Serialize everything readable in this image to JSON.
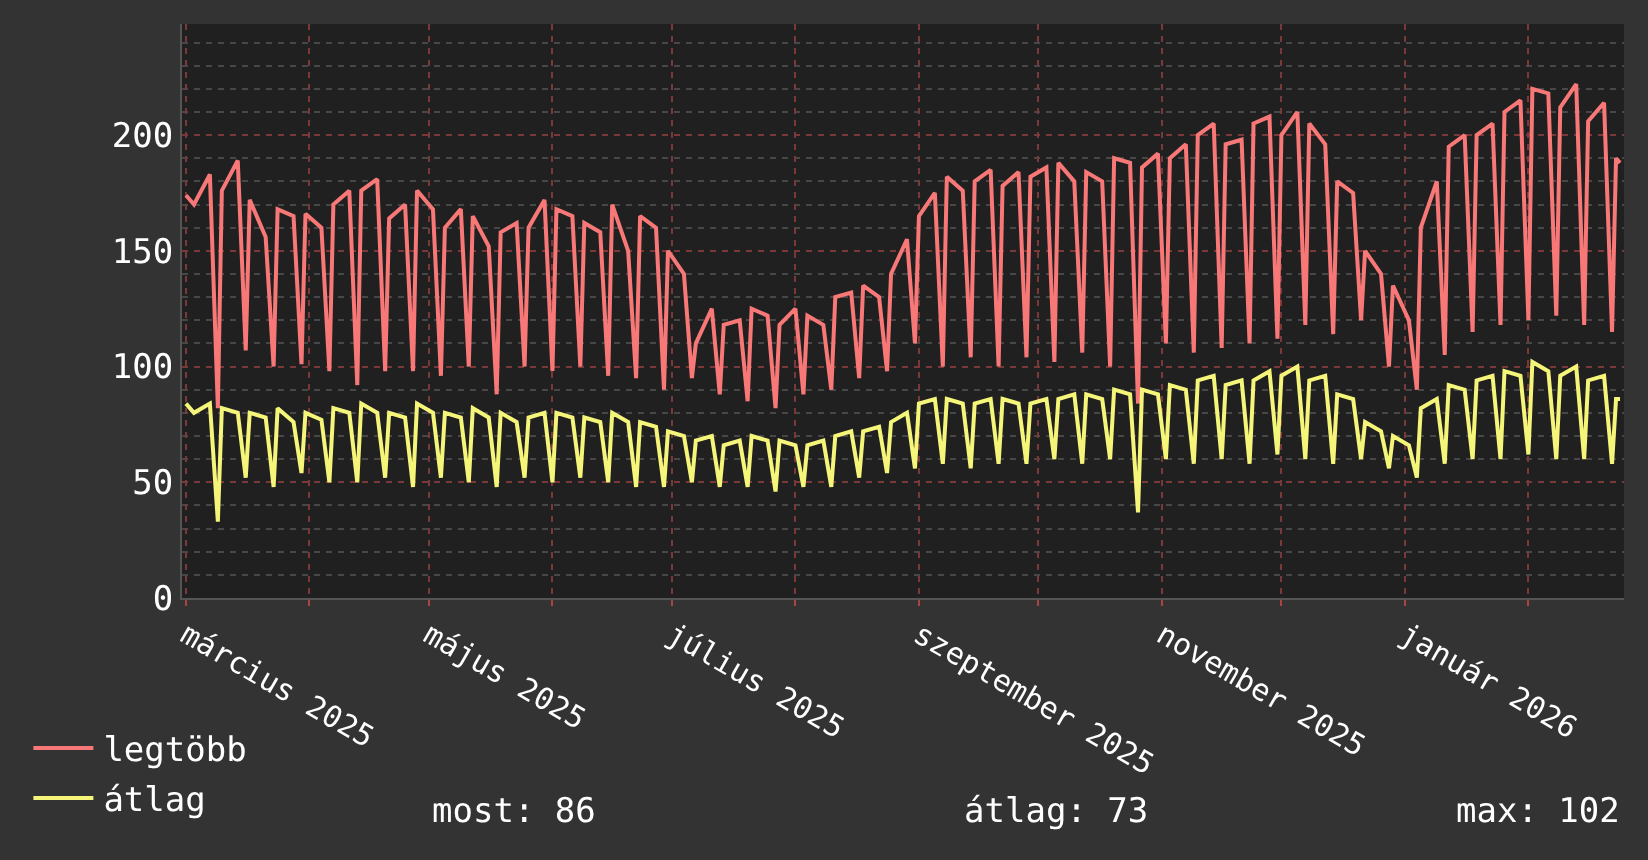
{
  "chart_data": {
    "type": "line",
    "x": [
      "2025-03-01",
      "2025-03-03",
      "2025-03-07",
      "2025-03-09",
      "2025-03-10",
      "2025-03-14",
      "2025-03-16",
      "2025-03-17",
      "2025-03-21",
      "2025-03-23",
      "2025-03-24",
      "2025-03-28",
      "2025-03-30",
      "2025-03-31",
      "2025-04-04",
      "2025-04-06",
      "2025-04-07",
      "2025-04-11",
      "2025-04-13",
      "2025-04-14",
      "2025-04-18",
      "2025-04-20",
      "2025-04-21",
      "2025-04-25",
      "2025-04-27",
      "2025-04-28",
      "2025-05-02",
      "2025-05-04",
      "2025-05-05",
      "2025-05-09",
      "2025-05-11",
      "2025-05-12",
      "2025-05-16",
      "2025-05-18",
      "2025-05-19",
      "2025-05-23",
      "2025-05-25",
      "2025-05-26",
      "2025-05-30",
      "2025-06-01",
      "2025-06-02",
      "2025-06-06",
      "2025-06-08",
      "2025-06-09",
      "2025-06-13",
      "2025-06-15",
      "2025-06-16",
      "2025-06-20",
      "2025-06-22",
      "2025-06-23",
      "2025-06-27",
      "2025-06-29",
      "2025-06-30",
      "2025-07-04",
      "2025-07-06",
      "2025-07-07",
      "2025-07-11",
      "2025-07-13",
      "2025-07-14",
      "2025-07-18",
      "2025-07-20",
      "2025-07-21",
      "2025-07-25",
      "2025-07-27",
      "2025-07-28",
      "2025-08-01",
      "2025-08-03",
      "2025-08-04",
      "2025-08-08",
      "2025-08-10",
      "2025-08-11",
      "2025-08-15",
      "2025-08-17",
      "2025-08-18",
      "2025-08-22",
      "2025-08-24",
      "2025-08-25",
      "2025-08-29",
      "2025-08-31",
      "2025-09-01",
      "2025-09-05",
      "2025-09-07",
      "2025-09-08",
      "2025-09-12",
      "2025-09-14",
      "2025-09-15",
      "2025-09-19",
      "2025-09-21",
      "2025-09-22",
      "2025-09-26",
      "2025-09-28",
      "2025-09-29",
      "2025-10-03",
      "2025-10-05",
      "2025-10-06",
      "2025-10-10",
      "2025-10-12",
      "2025-10-13",
      "2025-10-17",
      "2025-10-19",
      "2025-10-20",
      "2025-10-24",
      "2025-10-26",
      "2025-10-27",
      "2025-10-31",
      "2025-11-02",
      "2025-11-03",
      "2025-11-07",
      "2025-11-09",
      "2025-11-10",
      "2025-11-14",
      "2025-11-16",
      "2025-11-17",
      "2025-11-21",
      "2025-11-23",
      "2025-11-24",
      "2025-11-28",
      "2025-11-30",
      "2025-12-01",
      "2025-12-05",
      "2025-12-07",
      "2025-12-08",
      "2025-12-12",
      "2025-12-14",
      "2025-12-15",
      "2025-12-19",
      "2025-12-21",
      "2025-12-22",
      "2025-12-26",
      "2025-12-28",
      "2025-12-29",
      "2026-01-02",
      "2026-01-04",
      "2026-01-05",
      "2026-01-09",
      "2026-01-11",
      "2026-01-12",
      "2026-01-16",
      "2026-01-18",
      "2026-01-19",
      "2026-01-23",
      "2026-01-25",
      "2026-01-26",
      "2026-01-30",
      "2026-02-01",
      "2026-02-02",
      "2026-02-06",
      "2026-02-08",
      "2026-02-09",
      "2026-02-13",
      "2026-02-15",
      "2026-02-16",
      "2026-02-20",
      "2026-02-22",
      "2026-02-23",
      "2026-02-24"
    ],
    "series": [
      {
        "name": "legtöbb",
        "color": "#f87878",
        "values": [
          174,
          170,
          183,
          82,
          176,
          189,
          107,
          172,
          156,
          100,
          168,
          165,
          101,
          166,
          160,
          98,
          170,
          176,
          92,
          176,
          181,
          98,
          164,
          170,
          98,
          176,
          168,
          96,
          160,
          168,
          100,
          165,
          152,
          88,
          158,
          162,
          100,
          160,
          172,
          98,
          168,
          165,
          100,
          162,
          158,
          96,
          170,
          150,
          95,
          165,
          160,
          90,
          150,
          140,
          95,
          110,
          125,
          88,
          118,
          120,
          85,
          125,
          122,
          82,
          118,
          125,
          88,
          122,
          118,
          90,
          130,
          132,
          95,
          135,
          130,
          98,
          140,
          155,
          110,
          165,
          175,
          100,
          182,
          176,
          104,
          180,
          185,
          100,
          178,
          184,
          104,
          182,
          186,
          102,
          188,
          180,
          106,
          184,
          180,
          100,
          190,
          188,
          84,
          186,
          192,
          110,
          190,
          196,
          106,
          200,
          205,
          108,
          196,
          198,
          110,
          205,
          208,
          112,
          200,
          210,
          118,
          205,
          196,
          114,
          180,
          175,
          120,
          150,
          140,
          100,
          135,
          120,
          90,
          160,
          180,
          105,
          195,
          200,
          115,
          200,
          205,
          118,
          210,
          215,
          120,
          220,
          218,
          122,
          212,
          222,
          118,
          206,
          214,
          115,
          190,
          188
        ]
      },
      {
        "name": "átlag",
        "color": "#f5f57a",
        "values": [
          84,
          80,
          84,
          33,
          82,
          80,
          52,
          80,
          78,
          48,
          82,
          76,
          54,
          80,
          77,
          50,
          82,
          80,
          50,
          84,
          80,
          52,
          80,
          78,
          48,
          84,
          80,
          52,
          80,
          78,
          50,
          82,
          78,
          48,
          80,
          76,
          52,
          78,
          80,
          50,
          80,
          78,
          52,
          78,
          76,
          50,
          80,
          76,
          48,
          76,
          74,
          48,
          72,
          70,
          50,
          68,
          70,
          48,
          66,
          68,
          48,
          70,
          68,
          46,
          68,
          66,
          48,
          66,
          68,
          48,
          70,
          72,
          52,
          72,
          74,
          54,
          76,
          80,
          56,
          84,
          86,
          58,
          86,
          84,
          56,
          84,
          86,
          58,
          86,
          84,
          58,
          84,
          86,
          60,
          86,
          88,
          58,
          88,
          86,
          60,
          90,
          88,
          37,
          90,
          88,
          60,
          92,
          90,
          58,
          94,
          96,
          60,
          92,
          94,
          58,
          94,
          98,
          62,
          96,
          100,
          60,
          94,
          96,
          58,
          88,
          86,
          60,
          76,
          72,
          56,
          70,
          66,
          52,
          82,
          86,
          58,
          92,
          90,
          60,
          94,
          96,
          60,
          98,
          96,
          62,
          102,
          98,
          60,
          96,
          100,
          60,
          94,
          96,
          58,
          86,
          86
        ]
      }
    ],
    "xlim": [
      "2025-02-28",
      "2026-02-25"
    ],
    "xticks": [
      {
        "value": "2025-03-01",
        "label": "március 2025"
      },
      {
        "value": "2025-04-01",
        "label": null
      },
      {
        "value": "2025-05-01",
        "label": "május 2025"
      },
      {
        "value": "2025-06-01",
        "label": null
      },
      {
        "value": "2025-07-01",
        "label": "július 2025"
      },
      {
        "value": "2025-08-01",
        "label": null
      },
      {
        "value": "2025-09-01",
        "label": "szeptember 2025"
      },
      {
        "value": "2025-10-01",
        "label": null
      },
      {
        "value": "2025-11-01",
        "label": "november 2025"
      },
      {
        "value": "2025-12-01",
        "label": null
      },
      {
        "value": "2026-01-01",
        "label": "január 2026"
      },
      {
        "value": "2026-02-01",
        "label": null
      }
    ],
    "ylim": [
      0,
      248
    ],
    "yticks": [
      0,
      50,
      100,
      150,
      200
    ],
    "grid": true,
    "legend": "bottom left",
    "marker": "none",
    "line_style": "solid",
    "annotations": [
      "most: 86",
      "átlag: 73",
      "max: 102"
    ]
  }
}
